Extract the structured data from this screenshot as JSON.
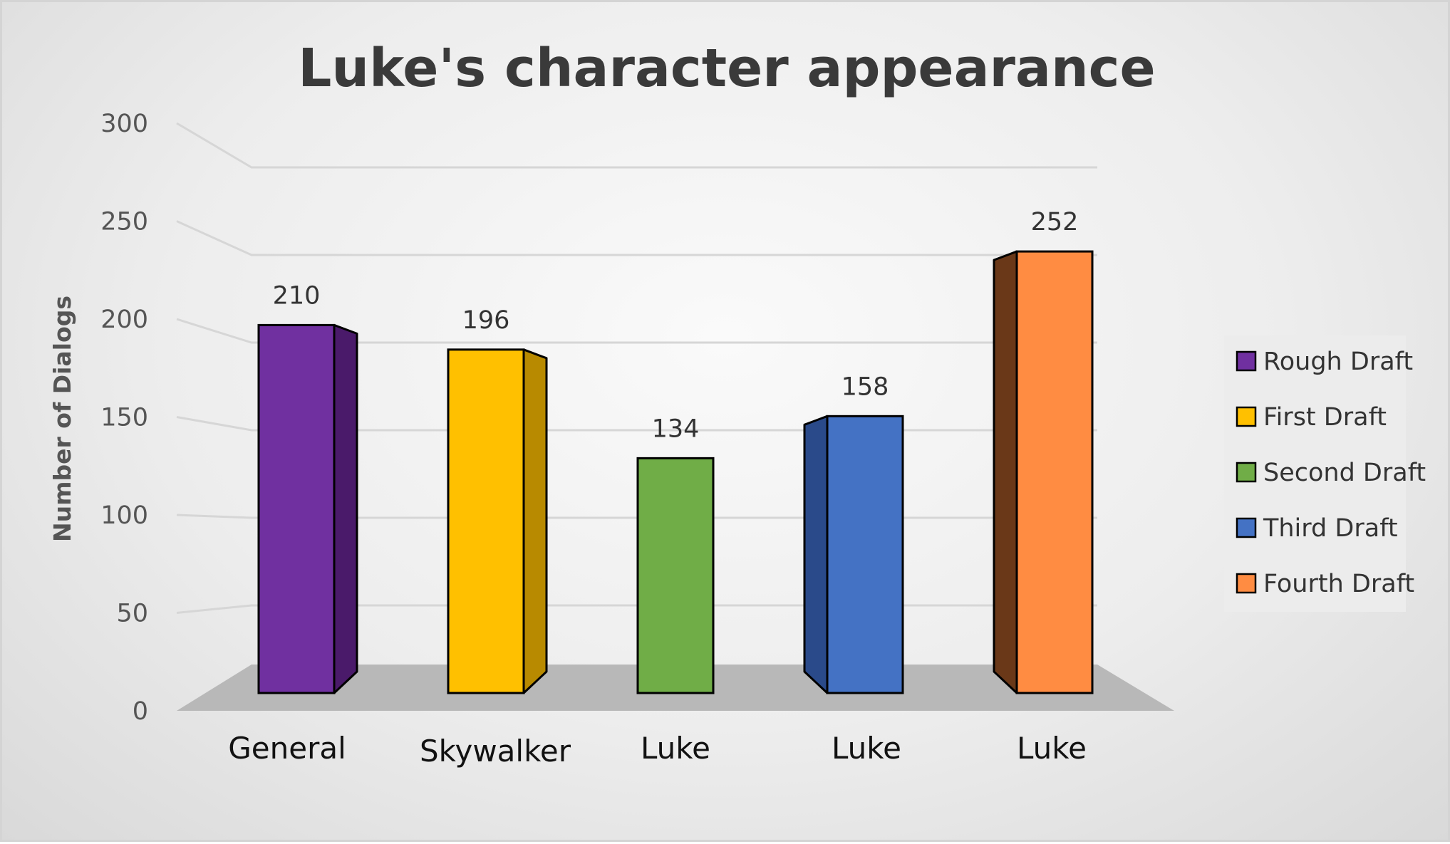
{
  "chart_data": {
    "type": "bar",
    "title": "Luke's character appearance",
    "xlabel": "",
    "ylabel": "Number of Dialogs",
    "ylim": [
      0,
      300
    ],
    "yticks": [
      0,
      50,
      100,
      150,
      200,
      250,
      300
    ],
    "grid": true,
    "legend_position": "right",
    "categories": [
      "General",
      "Skywalker",
      "Luke",
      "Luke",
      "Luke"
    ],
    "values": [
      210,
      196,
      134,
      158,
      252
    ],
    "data_labels": [
      "210",
      "196",
      "134",
      "158",
      "252"
    ],
    "legend": [
      "Rough Draft",
      "First Draft",
      "Second Draft",
      "Third Draft",
      "Fourth Draft"
    ],
    "colors": [
      "#7030a0",
      "#ffc000",
      "#70ad47",
      "#4472c4",
      "#ff8c42"
    ],
    "side_colors": [
      "#4a1a6a",
      "#b88a00",
      "#4a7a2a",
      "#2a4a8a",
      "#6a3818"
    ]
  }
}
